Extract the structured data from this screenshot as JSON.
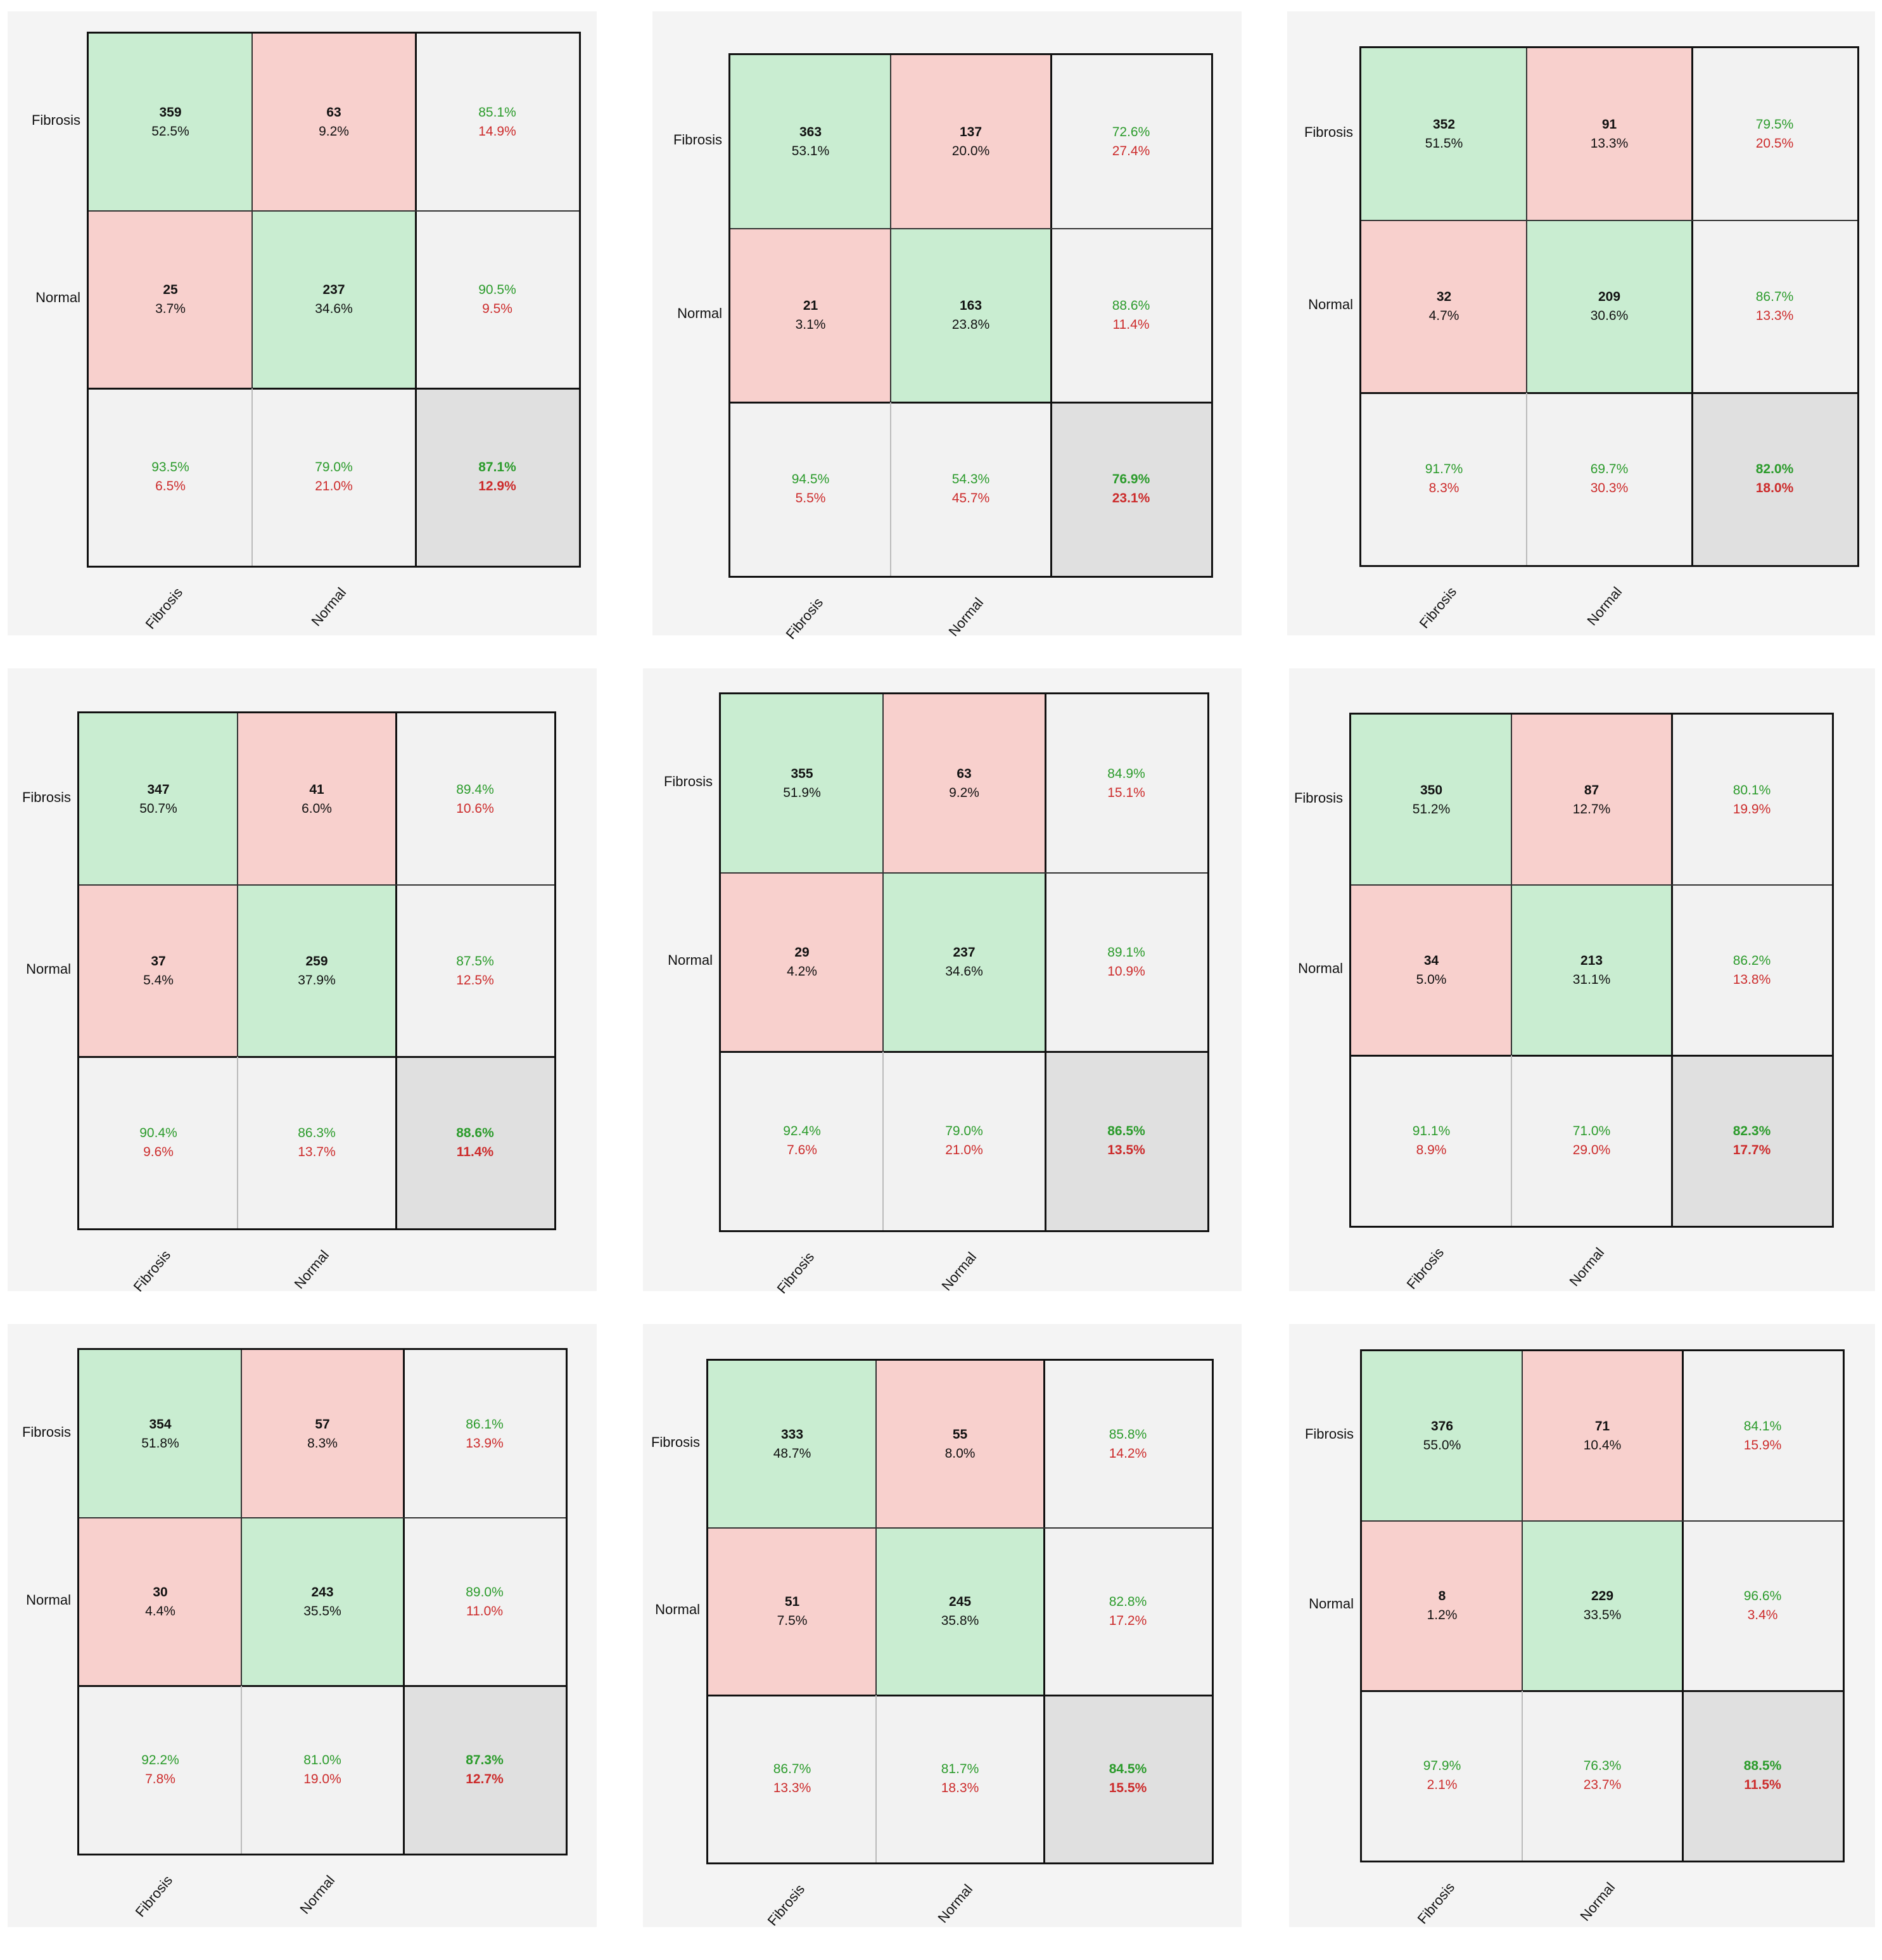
{
  "chart_data": [
    {
      "type": "table",
      "classes": [
        "Fibrosis",
        "Normal"
      ],
      "matrix": [
        [
          {
            "count": "359",
            "pct": "52.5%"
          },
          {
            "count": "63",
            "pct": "9.2%"
          }
        ],
        [
          {
            "count": "25",
            "pct": "3.7%"
          },
          {
            "count": "237",
            "pct": "34.6%"
          }
        ]
      ],
      "row_summary": [
        [
          "85.1%",
          "14.9%"
        ],
        [
          "90.5%",
          "9.5%"
        ]
      ],
      "col_summary": [
        [
          "93.5%",
          "6.5%"
        ],
        [
          "79.0%",
          "21.0%"
        ]
      ],
      "overall": [
        "87.1%",
        "12.9%"
      ]
    },
    {
      "type": "table",
      "classes": [
        "Fibrosis",
        "Normal"
      ],
      "matrix": [
        [
          {
            "count": "363",
            "pct": "53.1%"
          },
          {
            "count": "137",
            "pct": "20.0%"
          }
        ],
        [
          {
            "count": "21",
            "pct": "3.1%"
          },
          {
            "count": "163",
            "pct": "23.8%"
          }
        ]
      ],
      "row_summary": [
        [
          "72.6%",
          "27.4%"
        ],
        [
          "88.6%",
          "11.4%"
        ]
      ],
      "col_summary": [
        [
          "94.5%",
          "5.5%"
        ],
        [
          "54.3%",
          "45.7%"
        ]
      ],
      "overall": [
        "76.9%",
        "23.1%"
      ]
    },
    {
      "type": "table",
      "classes": [
        "Fibrosis",
        "Normal"
      ],
      "matrix": [
        [
          {
            "count": "352",
            "pct": "51.5%"
          },
          {
            "count": "91",
            "pct": "13.3%"
          }
        ],
        [
          {
            "count": "32",
            "pct": "4.7%"
          },
          {
            "count": "209",
            "pct": "30.6%"
          }
        ]
      ],
      "row_summary": [
        [
          "79.5%",
          "20.5%"
        ],
        [
          "86.7%",
          "13.3%"
        ]
      ],
      "col_summary": [
        [
          "91.7%",
          "8.3%"
        ],
        [
          "69.7%",
          "30.3%"
        ]
      ],
      "overall": [
        "82.0%",
        "18.0%"
      ]
    },
    {
      "type": "table",
      "classes": [
        "Fibrosis",
        "Normal"
      ],
      "matrix": [
        [
          {
            "count": "347",
            "pct": "50.7%"
          },
          {
            "count": "41",
            "pct": "6.0%"
          }
        ],
        [
          {
            "count": "37",
            "pct": "5.4%"
          },
          {
            "count": "259",
            "pct": "37.9%"
          }
        ]
      ],
      "row_summary": [
        [
          "89.4%",
          "10.6%"
        ],
        [
          "87.5%",
          "12.5%"
        ]
      ],
      "col_summary": [
        [
          "90.4%",
          "9.6%"
        ],
        [
          "86.3%",
          "13.7%"
        ]
      ],
      "overall": [
        "88.6%",
        "11.4%"
      ]
    },
    {
      "type": "table",
      "classes": [
        "Fibrosis",
        "Normal"
      ],
      "matrix": [
        [
          {
            "count": "355",
            "pct": "51.9%"
          },
          {
            "count": "63",
            "pct": "9.2%"
          }
        ],
        [
          {
            "count": "29",
            "pct": "4.2%"
          },
          {
            "count": "237",
            "pct": "34.6%"
          }
        ]
      ],
      "row_summary": [
        [
          "84.9%",
          "15.1%"
        ],
        [
          "89.1%",
          "10.9%"
        ]
      ],
      "col_summary": [
        [
          "92.4%",
          "7.6%"
        ],
        [
          "79.0%",
          "21.0%"
        ]
      ],
      "overall": [
        "86.5%",
        "13.5%"
      ]
    },
    {
      "type": "table",
      "classes": [
        "Fibrosis",
        "Normal"
      ],
      "matrix": [
        [
          {
            "count": "350",
            "pct": "51.2%"
          },
          {
            "count": "87",
            "pct": "12.7%"
          }
        ],
        [
          {
            "count": "34",
            "pct": "5.0%"
          },
          {
            "count": "213",
            "pct": "31.1%"
          }
        ]
      ],
      "row_summary": [
        [
          "80.1%",
          "19.9%"
        ],
        [
          "86.2%",
          "13.8%"
        ]
      ],
      "col_summary": [
        [
          "91.1%",
          "8.9%"
        ],
        [
          "71.0%",
          "29.0%"
        ]
      ],
      "overall": [
        "82.3%",
        "17.7%"
      ]
    },
    {
      "type": "table",
      "classes": [
        "Fibrosis",
        "Normal"
      ],
      "matrix": [
        [
          {
            "count": "354",
            "pct": "51.8%"
          },
          {
            "count": "57",
            "pct": "8.3%"
          }
        ],
        [
          {
            "count": "30",
            "pct": "4.4%"
          },
          {
            "count": "243",
            "pct": "35.5%"
          }
        ]
      ],
      "row_summary": [
        [
          "86.1%",
          "13.9%"
        ],
        [
          "89.0%",
          "11.0%"
        ]
      ],
      "col_summary": [
        [
          "92.2%",
          "7.8%"
        ],
        [
          "81.0%",
          "19.0%"
        ]
      ],
      "overall": [
        "87.3%",
        "12.7%"
      ]
    },
    {
      "type": "table",
      "classes": [
        "Fibrosis",
        "Normal"
      ],
      "matrix": [
        [
          {
            "count": "333",
            "pct": "48.7%"
          },
          {
            "count": "55",
            "pct": "8.0%"
          }
        ],
        [
          {
            "count": "51",
            "pct": "7.5%"
          },
          {
            "count": "245",
            "pct": "35.8%"
          }
        ]
      ],
      "row_summary": [
        [
          "85.8%",
          "14.2%"
        ],
        [
          "82.8%",
          "17.2%"
        ]
      ],
      "col_summary": [
        [
          "86.7%",
          "13.3%"
        ],
        [
          "81.7%",
          "18.3%"
        ]
      ],
      "overall": [
        "84.5%",
        "15.5%"
      ]
    },
    {
      "type": "table",
      "classes": [
        "Fibrosis",
        "Normal"
      ],
      "matrix": [
        [
          {
            "count": "376",
            "pct": "55.0%"
          },
          {
            "count": "71",
            "pct": "10.4%"
          }
        ],
        [
          {
            "count": "8",
            "pct": "1.2%"
          },
          {
            "count": "229",
            "pct": "33.5%"
          }
        ]
      ],
      "row_summary": [
        [
          "84.1%",
          "15.9%"
        ],
        [
          "96.6%",
          "3.4%"
        ]
      ],
      "col_summary": [
        [
          "97.9%",
          "2.1%"
        ],
        [
          "76.3%",
          "23.7%"
        ]
      ],
      "overall": [
        "88.5%",
        "11.5%"
      ]
    }
  ],
  "colors": {
    "correct": "#c9edd1",
    "incorrect": "#f8d0cd",
    "summary": "#f2f2f2",
    "overall": "#e0e0e0",
    "positive_text": "#2b9b2b",
    "negative_text": "#cc2b2b"
  }
}
